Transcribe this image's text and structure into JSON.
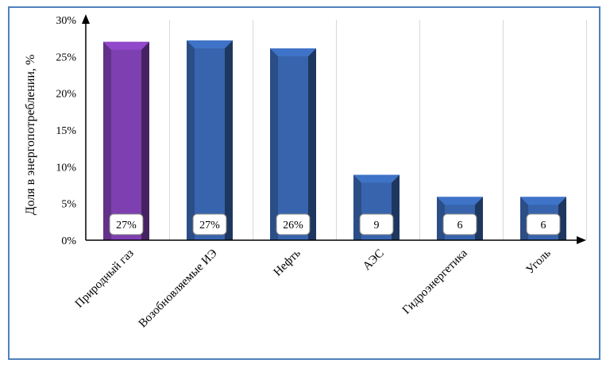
{
  "chart_data": {
    "type": "bar",
    "ylabel": "Доля в энергопотреблении, %",
    "xlabel": "",
    "ylim": [
      0,
      30
    ],
    "yticks": [
      0,
      5,
      10,
      15,
      20,
      25,
      30
    ],
    "ytick_labels": [
      "0%",
      "5%",
      "10%",
      "15%",
      "20%",
      "25%",
      "30%"
    ],
    "grid": "vertical",
    "categories": [
      "Природный газ",
      "Возобновляемые ИЭ",
      "Нефть",
      "АЭС",
      "Гидроэнергетика",
      "Уголь"
    ],
    "values": [
      27,
      27.2,
      26.1,
      8.9,
      5.9,
      5.9
    ],
    "data_labels": [
      "27%",
      "27%",
      "26%",
      "9",
      "6",
      "6"
    ],
    "colors": {
      "highlight": "#7e3fb0",
      "bar": "#3764ad",
      "frame": "#4f81bd"
    },
    "highlight_index": 0
  }
}
